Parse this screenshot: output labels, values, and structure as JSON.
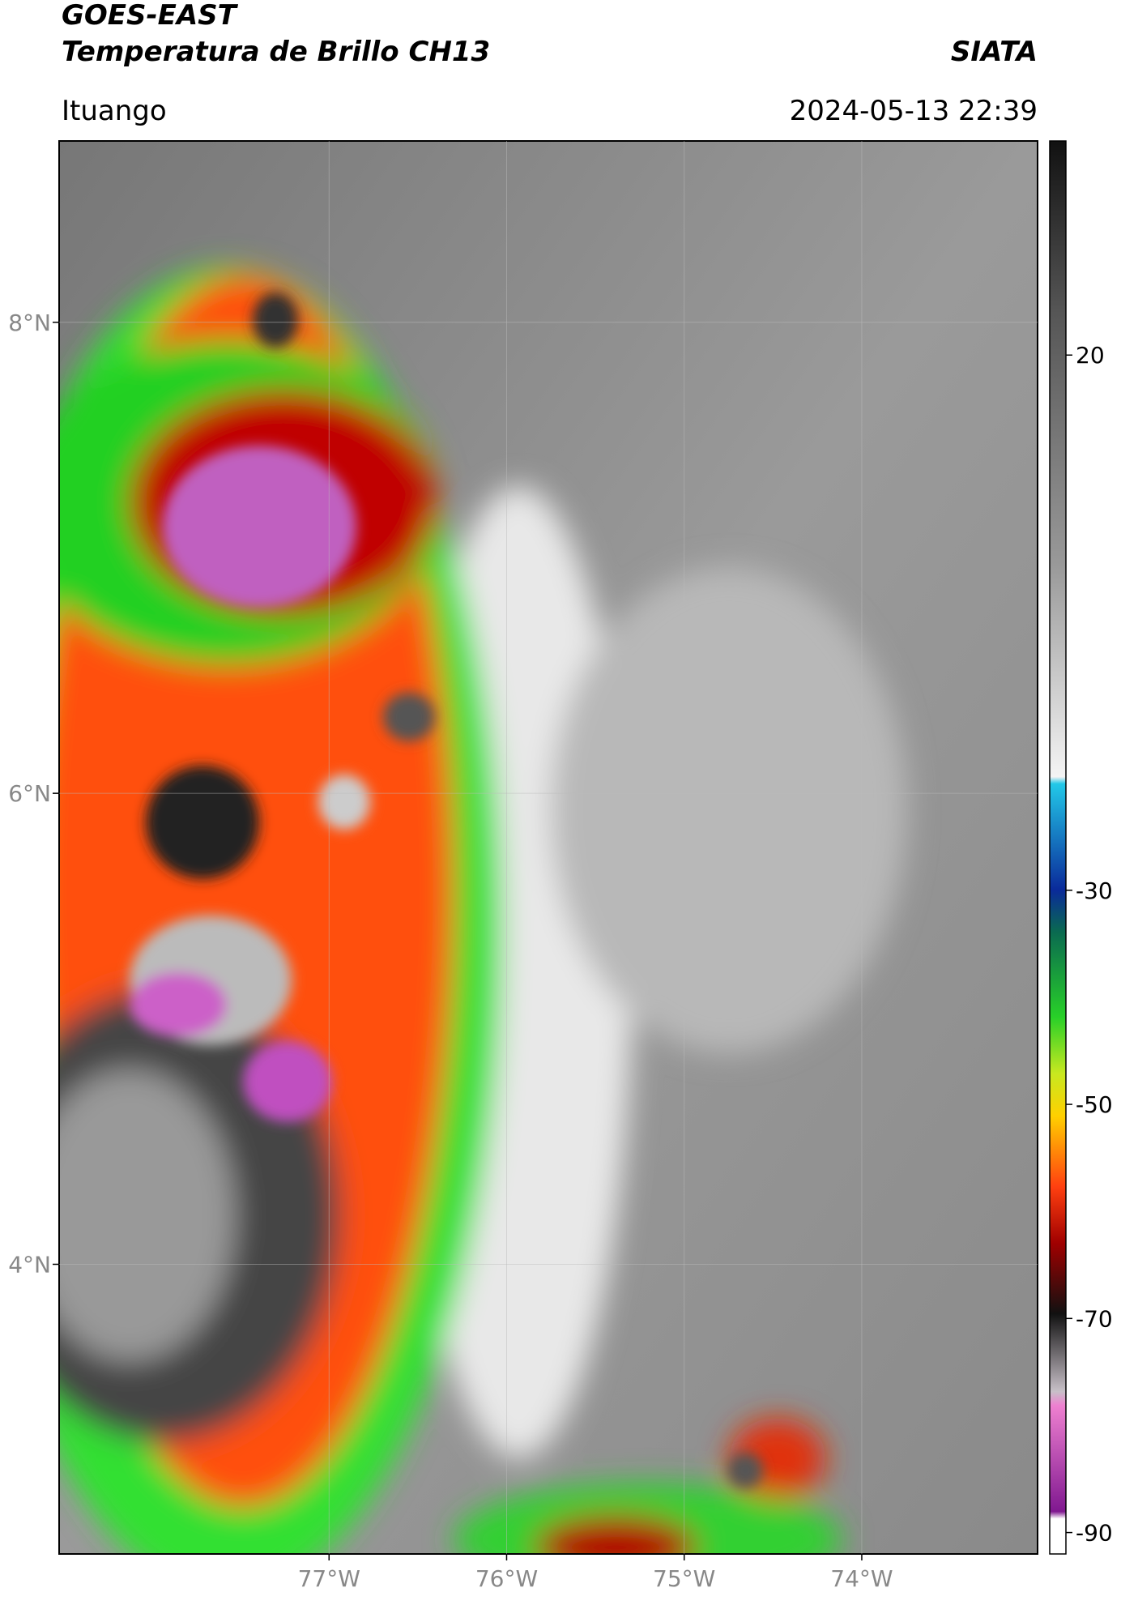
{
  "header": {
    "title": "GOES-EAST",
    "subtitle": "Temperatura de Brillo CH13",
    "source": "SIATA",
    "location": "Ituango",
    "datetime": "2024-05-13 22:39"
  },
  "map": {
    "lonlim": [
      -78.52,
      -73.01
    ],
    "latlim": [
      2.77,
      8.77
    ],
    "lat_ticks": [
      {
        "value": 8,
        "label": "8°N"
      },
      {
        "value": 6,
        "label": "6°N"
      },
      {
        "value": 4,
        "label": "4°N"
      }
    ],
    "lon_ticks": [
      {
        "value": -77,
        "label": "77°W"
      },
      {
        "value": -76,
        "label": "76°W"
      },
      {
        "value": -75,
        "label": "75°W"
      },
      {
        "value": -74,
        "label": "74°W"
      }
    ]
  },
  "colorbar": {
    "lim": [
      -92,
      40
    ],
    "ticks": [
      20,
      -30,
      -50,
      -70,
      -90
    ]
  }
}
